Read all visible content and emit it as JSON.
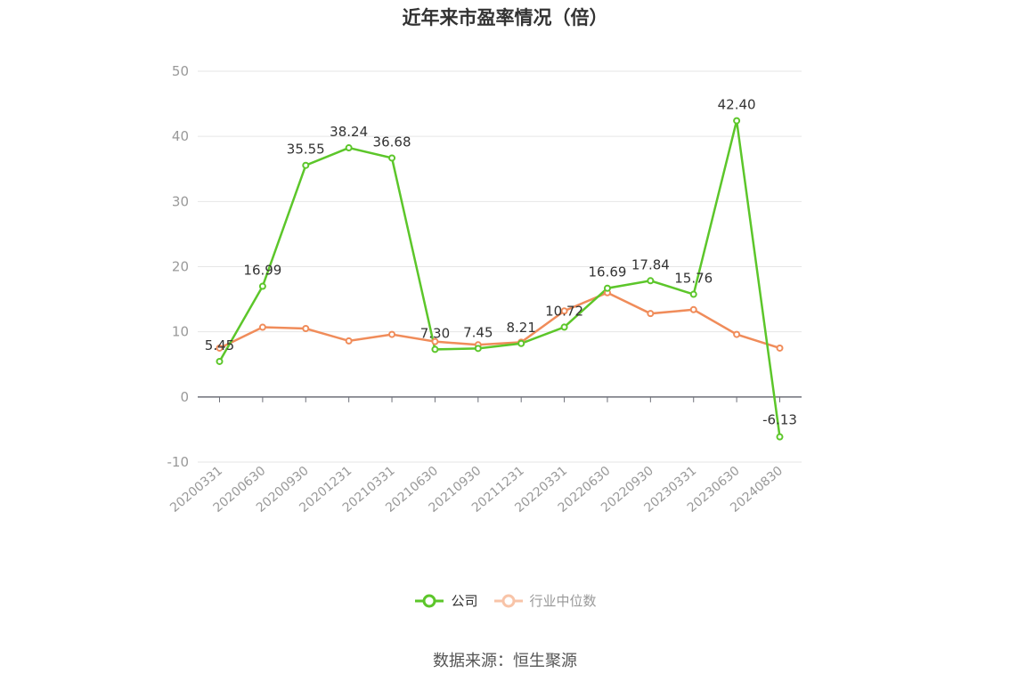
{
  "chart_data": {
    "type": "line",
    "title": "近年来市盈率情况（倍）",
    "categories": [
      "20200331",
      "20200630",
      "20200930",
      "20201231",
      "20210331",
      "20210630",
      "20210930",
      "20211231",
      "20220331",
      "20220630",
      "20220930",
      "20230331",
      "20230630",
      "20240830"
    ],
    "series": [
      {
        "name": "公司",
        "color": "#5cc62a",
        "values": [
          5.45,
          16.99,
          35.55,
          38.24,
          36.68,
          7.3,
          7.45,
          8.21,
          10.72,
          16.69,
          17.84,
          15.76,
          42.4,
          -6.13
        ],
        "labels": [
          "5.45",
          "16.99",
          "35.55",
          "38.24",
          "36.68",
          "7.30",
          "7.45",
          "8.21",
          "10.72",
          "16.69",
          "17.84",
          "15.76",
          "42.40",
          "-6.13"
        ]
      },
      {
        "name": "行业中位数",
        "color": "#f08c5a",
        "values": [
          7.5,
          10.7,
          10.5,
          8.6,
          9.6,
          8.5,
          8.0,
          8.4,
          13.2,
          16.0,
          12.8,
          13.4,
          9.6,
          7.5
        ]
      }
    ],
    "yticks": [
      "50",
      "40",
      "30",
      "20",
      "10",
      "0",
      "-10"
    ],
    "ylim": [
      -10,
      50
    ],
    "grid": true,
    "legend": "bottom"
  },
  "source": "数据来源：恒生聚源"
}
